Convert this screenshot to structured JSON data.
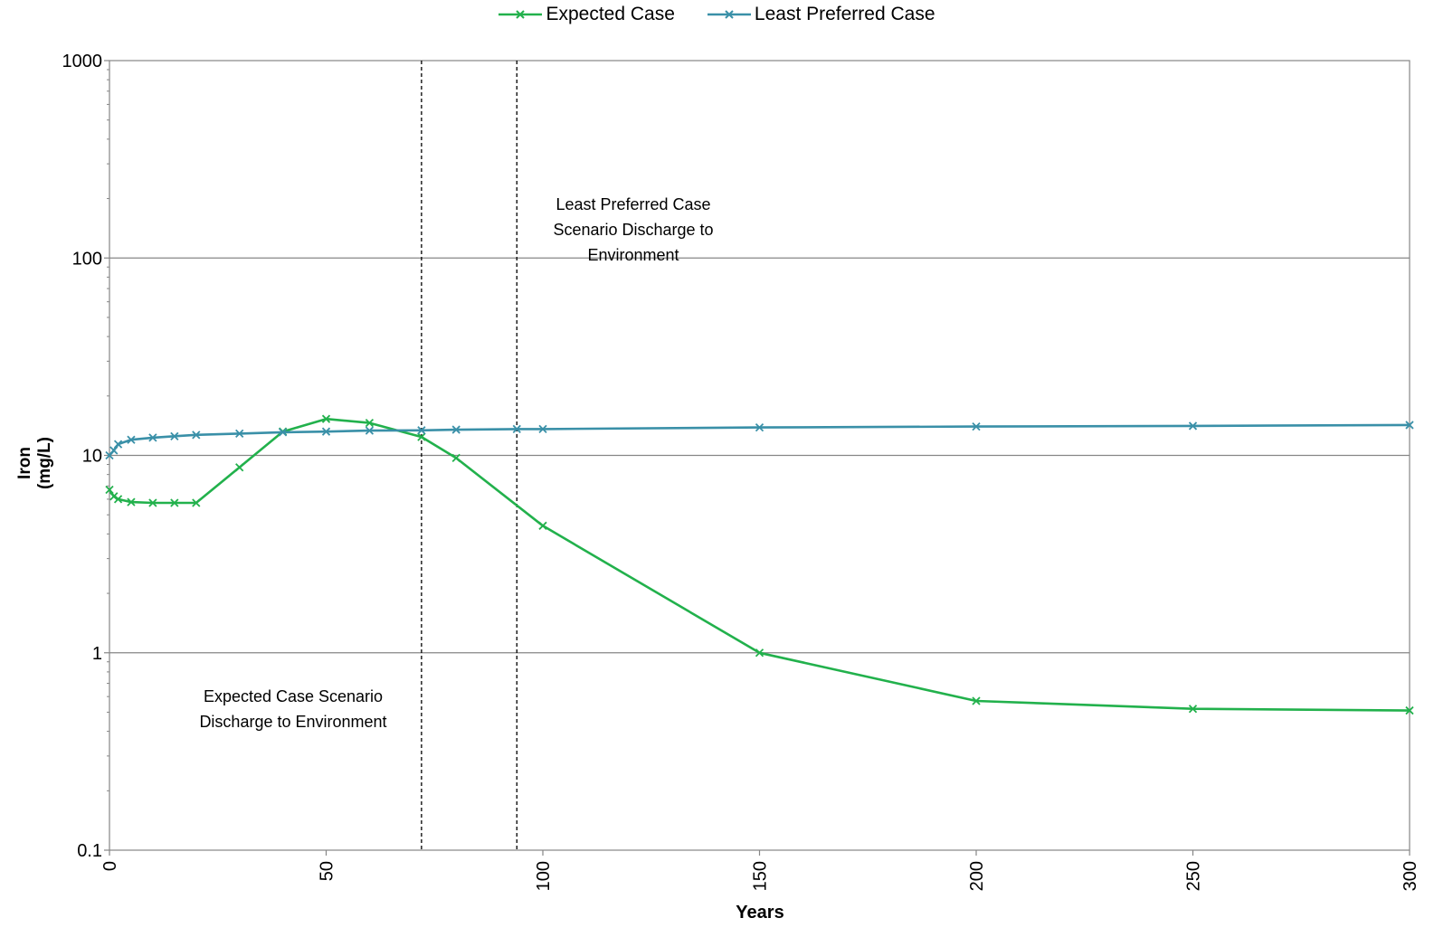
{
  "chart_data": {
    "type": "line",
    "ylabel": "Iron (mg/L)",
    "xlabel": "Years",
    "y_scale": "log",
    "ylim": [
      0.1,
      1000
    ],
    "xlim": [
      0,
      300
    ],
    "y_ticks": [
      {
        "value": 0.1,
        "label": "0.1"
      },
      {
        "value": 1,
        "label": "1"
      },
      {
        "value": 10,
        "label": "10"
      },
      {
        "value": 100,
        "label": "100"
      },
      {
        "value": 1000,
        "label": "1000"
      }
    ],
    "x_ticks": [
      {
        "value": 0,
        "label": "0"
      },
      {
        "value": 50,
        "label": "50"
      },
      {
        "value": 100,
        "label": "100"
      },
      {
        "value": 150,
        "label": "150"
      },
      {
        "value": 200,
        "label": "200"
      },
      {
        "value": 250,
        "label": "250"
      },
      {
        "value": 300,
        "label": "300"
      }
    ],
    "grid": "horizontal major",
    "legend_position": "top-center",
    "series": [
      {
        "name": "Expected Case",
        "color": "#22b14c",
        "marker": "x",
        "points": [
          [
            0,
            6.7
          ],
          [
            1,
            6.2
          ],
          [
            2,
            6.0
          ],
          [
            5,
            5.8
          ],
          [
            10,
            5.75
          ],
          [
            15,
            5.75
          ],
          [
            20,
            5.75
          ],
          [
            30,
            8.7
          ],
          [
            40,
            13.2
          ],
          [
            50,
            15.3
          ],
          [
            60,
            14.6
          ],
          [
            72,
            12.4
          ],
          [
            80,
            9.7
          ],
          [
            100,
            4.4
          ],
          [
            150,
            1.0
          ],
          [
            200,
            0.57
          ],
          [
            250,
            0.52
          ],
          [
            300,
            0.51
          ]
        ]
      },
      {
        "name": "Least Preferred Case",
        "color": "#3a90a8",
        "marker": "x",
        "points": [
          [
            0,
            10.0
          ],
          [
            1,
            10.6
          ],
          [
            2,
            11.4
          ],
          [
            5,
            12.0
          ],
          [
            10,
            12.3
          ],
          [
            15,
            12.5
          ],
          [
            20,
            12.7
          ],
          [
            30,
            12.9
          ],
          [
            40,
            13.1
          ],
          [
            50,
            13.2
          ],
          [
            60,
            13.35
          ],
          [
            72,
            13.4
          ],
          [
            80,
            13.5
          ],
          [
            94,
            13.6
          ],
          [
            100,
            13.6
          ],
          [
            150,
            13.85
          ],
          [
            200,
            14.0
          ],
          [
            250,
            14.1
          ],
          [
            300,
            14.25
          ]
        ]
      }
    ],
    "vertical_lines": [
      {
        "x": 72,
        "style": "dashed"
      },
      {
        "x": 94,
        "style": "dashed"
      }
    ],
    "annotations": [
      {
        "id": "expected",
        "text": "Expected Case Scenario\nDischarge to Environment"
      },
      {
        "id": "least",
        "text": "Least Preferred Case\nScenario Discharge to\nEnvironment"
      }
    ]
  }
}
